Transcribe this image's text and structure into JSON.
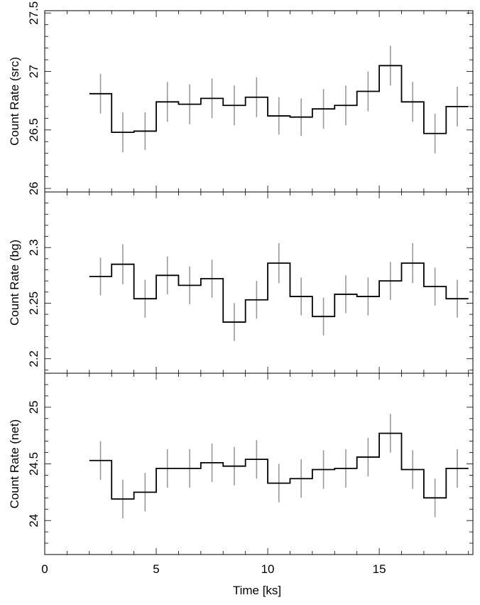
{
  "x_axis": {
    "label": "Time [ks]",
    "ticks": [
      0,
      5,
      10,
      15
    ],
    "tick_labels": [
      "0",
      "5",
      "10",
      "15"
    ],
    "range": [
      0,
      19.2
    ]
  },
  "chart_data": [
    {
      "type": "line",
      "step": true,
      "ylabel": "Count Rate (src)",
      "ylim": [
        25.97,
        27.52
      ],
      "yticks": [
        26,
        26.5,
        27,
        27.5
      ],
      "ytick_labels": [
        "26",
        "26.5",
        "27",
        "27.5"
      ],
      "bin_width": 1,
      "x": [
        2.5,
        3.5,
        4.5,
        5.5,
        6.5,
        7.5,
        8.5,
        9.5,
        10.5,
        11.5,
        12.5,
        13.5,
        14.5,
        15.5,
        16.5,
        17.5,
        18.5
      ],
      "values": [
        26.81,
        26.48,
        26.49,
        26.74,
        26.72,
        26.77,
        26.71,
        26.78,
        26.62,
        26.61,
        26.68,
        26.71,
        26.83,
        27.05,
        26.74,
        26.47,
        26.7
      ],
      "errors": [
        0.17,
        0.17,
        0.16,
        0.17,
        0.17,
        0.17,
        0.17,
        0.17,
        0.16,
        0.16,
        0.17,
        0.17,
        0.17,
        0.17,
        0.17,
        0.17,
        0.17
      ]
    },
    {
      "type": "line",
      "step": true,
      "ylabel": "Count Rate (bg)",
      "ylim": [
        2.187,
        2.35
      ],
      "yticks": [
        2.2,
        2.25,
        2.3
      ],
      "ytick_labels": [
        "2.2",
        "2.25",
        "2.3"
      ],
      "bin_width": 1,
      "x": [
        2.5,
        3.5,
        4.5,
        5.5,
        6.5,
        7.5,
        8.5,
        9.5,
        10.5,
        11.5,
        12.5,
        13.5,
        14.5,
        15.5,
        16.5,
        17.5,
        18.5
      ],
      "values": [
        2.274,
        2.285,
        2.254,
        2.275,
        2.266,
        2.272,
        2.233,
        2.253,
        2.286,
        2.256,
        2.238,
        2.258,
        2.256,
        2.27,
        2.286,
        2.265,
        2.254
      ],
      "errors": [
        0.017,
        0.018,
        0.017,
        0.017,
        0.017,
        0.017,
        0.017,
        0.017,
        0.018,
        0.017,
        0.017,
        0.017,
        0.017,
        0.017,
        0.018,
        0.017,
        0.017
      ]
    },
    {
      "type": "line",
      "step": true,
      "ylabel": "Count Rate (net)",
      "ylim": [
        23.7,
        25.3
      ],
      "yticks": [
        24,
        24.5,
        25
      ],
      "ytick_labels": [
        "24",
        "24.5",
        "25"
      ],
      "bin_width": 1,
      "x": [
        2.5,
        3.5,
        4.5,
        5.5,
        6.5,
        7.5,
        8.5,
        9.5,
        10.5,
        11.5,
        12.5,
        13.5,
        14.5,
        15.5,
        16.5,
        17.5,
        18.5
      ],
      "values": [
        24.53,
        24.19,
        24.25,
        24.46,
        24.46,
        24.51,
        24.48,
        24.54,
        24.33,
        24.37,
        24.45,
        24.46,
        24.56,
        24.77,
        24.45,
        24.2,
        24.46
      ],
      "errors": [
        0.17,
        0.17,
        0.17,
        0.17,
        0.17,
        0.17,
        0.17,
        0.17,
        0.17,
        0.17,
        0.17,
        0.17,
        0.17,
        0.17,
        0.17,
        0.17,
        0.17
      ]
    }
  ]
}
